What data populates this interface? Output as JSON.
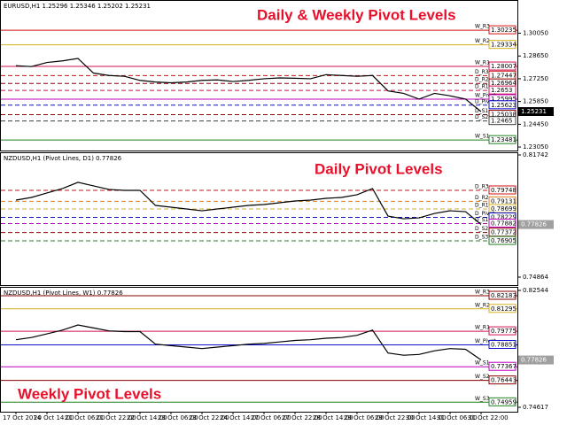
{
  "chart_data": [
    {
      "type": "line",
      "header": "EURUSD,H1 1.25296 1.25346 1.25202 1.25231",
      "title": "Daily & Weekly Pivot Levels",
      "ylim": [
        1.22835,
        1.32094
      ],
      "yticks": [
        {
          "value": 1.3005,
          "label": "1.30050"
        },
        {
          "value": 1.2865,
          "label": "1.28650"
        },
        {
          "value": 1.2725,
          "label": "1.27250"
        },
        {
          "value": 1.2585,
          "label": "1.25850"
        },
        {
          "value": 1.2445,
          "label": "1.24450"
        },
        {
          "value": 1.2305,
          "label": "1.23050"
        }
      ],
      "color": "#000000",
      "values": [
        1.2805,
        1.28,
        1.2825,
        1.2835,
        1.285,
        1.276,
        1.2745,
        1.274,
        1.2715,
        1.2705,
        1.27,
        1.2705,
        1.2715,
        1.2718,
        1.2708,
        1.2715,
        1.2725,
        1.273,
        1.2728,
        1.2725,
        1.275,
        1.2745,
        1.274,
        1.2745,
        1.265,
        1.2635,
        1.26,
        1.2635,
        1.262,
        1.26,
        1.2523
      ],
      "price_tag": 1.25231,
      "price_tag_color": "#000000",
      "levels": [
        {
          "name": "W_R3",
          "value": 1.30235,
          "color": "#d01010",
          "dashed": false
        },
        {
          "name": "W_R2",
          "value": 1.29334,
          "color": "#d4b020",
          "dashed": false
        },
        {
          "name": "W_R1",
          "value": 1.28007,
          "color": "#d01050",
          "dashed": false
        },
        {
          "name": "D_R3",
          "value": 1.27447,
          "color": "#d01010",
          "dashed": true
        },
        {
          "name": "D_R2",
          "value": 1.26964,
          "color": "#8b0000",
          "dashed": true
        },
        {
          "name": "D_R1",
          "value": 1.2653,
          "color": "#d01050",
          "dashed": true
        },
        {
          "name": "W_Pivot",
          "value": 1.25995,
          "color": "#c000c0",
          "dashed": false
        },
        {
          "name": "D_Pivot",
          "value": 1.25623,
          "color": "#1010d0",
          "dashed": true
        },
        {
          "name": "D_S1",
          "value": 1.25038,
          "color": "#8b0000",
          "dashed": true
        },
        {
          "name": "D_S2",
          "value": 1.2465,
          "color": "#404040",
          "dashed": true
        },
        {
          "name": "W_S1",
          "value": 1.23481,
          "color": "#208020",
          "dashed": false
        }
      ]
    },
    {
      "type": "line",
      "header": "NZDUSD,H1 (Pivot Lines, D1) 0.77826",
      "title": "Daily Pivot Levels",
      "ylim": [
        0.74416,
        0.81891
      ],
      "yticks": [
        0.81742,
        0.74864
      ],
      "color": "#000000",
      "values": [
        0.792,
        0.7935,
        0.796,
        0.7985,
        0.802,
        0.8,
        0.798,
        0.7975,
        0.7975,
        0.789,
        0.788,
        0.787,
        0.786,
        0.787,
        0.788,
        0.789,
        0.7895,
        0.7905,
        0.7915,
        0.792,
        0.793,
        0.7935,
        0.795,
        0.7985,
        0.783,
        0.7815,
        0.782,
        0.7845,
        0.786,
        0.7855,
        0.7783
      ],
      "price_tag": 0.77826,
      "price_tag_color": "#a0a0a0",
      "levels": [
        {
          "name": "D_R3",
          "value": 0.79748,
          "color": "#d01010",
          "dashed": true
        },
        {
          "name": "D_R2",
          "value": 0.79131,
          "color": "#e08020",
          "dashed": true
        },
        {
          "name": "D_R1",
          "value": 0.78699,
          "color": "#d4b020",
          "dashed": true
        },
        {
          "name": "D_Pivot",
          "value": 0.78229,
          "color": "#1010d0",
          "dashed": true
        },
        {
          "name": "D_S1",
          "value": 0.77882,
          "color": "#c000c0",
          "dashed": true
        },
        {
          "name": "D_S2",
          "value": 0.77372,
          "color": "#8b0000",
          "dashed": true
        },
        {
          "name": "D_S3",
          "value": 0.76905,
          "color": "#208020",
          "dashed": true
        }
      ]
    },
    {
      "type": "line",
      "header": "NZDUSD,H1 (Pivot Lines, W1) 0.77826",
      "title": "Weekly Pivot Levels",
      "ylim": [
        0.74317,
        0.82784
      ],
      "yticks": [
        0.82544,
        0.74617
      ],
      "color": "#000000",
      "categories": [
        "17 Oct 2014",
        null,
        "20 Oct 14:00",
        null,
        "21 Oct 06:00",
        null,
        "21 Oct 22:00",
        null,
        "22 Oct 14:00",
        null,
        "23 Oct 06:00",
        null,
        "23 Oct 22:00",
        null,
        "24 Oct 14:00",
        null,
        "27 Oct 06:00",
        null,
        "27 Oct 22:00",
        null,
        "28 Oct 14:00",
        null,
        "29 Oct 06:00",
        null,
        "29 Oct 22:00",
        null,
        "30 Oct 14:00",
        null,
        "31 Oct 06:00",
        null,
        "31 Oct 22:00"
      ],
      "values": [
        0.792,
        0.7935,
        0.796,
        0.7985,
        0.802,
        0.8,
        0.798,
        0.7975,
        0.7975,
        0.789,
        0.788,
        0.787,
        0.786,
        0.787,
        0.788,
        0.789,
        0.7895,
        0.7905,
        0.7915,
        0.792,
        0.793,
        0.7935,
        0.795,
        0.7985,
        0.783,
        0.7815,
        0.782,
        0.7845,
        0.786,
        0.7855,
        0.7783
      ],
      "price_tag": 0.77826,
      "price_tag_color": "#a0a0a0",
      "levels": [
        {
          "name": "W_R3",
          "value": 0.82183,
          "color": "#8b0000",
          "dashed": false
        },
        {
          "name": "W_R2",
          "value": 0.81295,
          "color": "#d4b020",
          "dashed": false
        },
        {
          "name": "W_R1",
          "value": 0.79775,
          "color": "#d01050",
          "dashed": false
        },
        {
          "name": "W_Pivot",
          "value": 0.78851,
          "color": "#1010d0",
          "dashed": false
        },
        {
          "name": "W_S1",
          "value": 0.77367,
          "color": "#c000c0",
          "dashed": false
        },
        {
          "name": "W_S2",
          "value": 0.76443,
          "color": "#8b0000",
          "dashed": false
        },
        {
          "name": "W_S3",
          "value": 0.74959,
          "color": "#208020",
          "dashed": false
        }
      ]
    }
  ]
}
